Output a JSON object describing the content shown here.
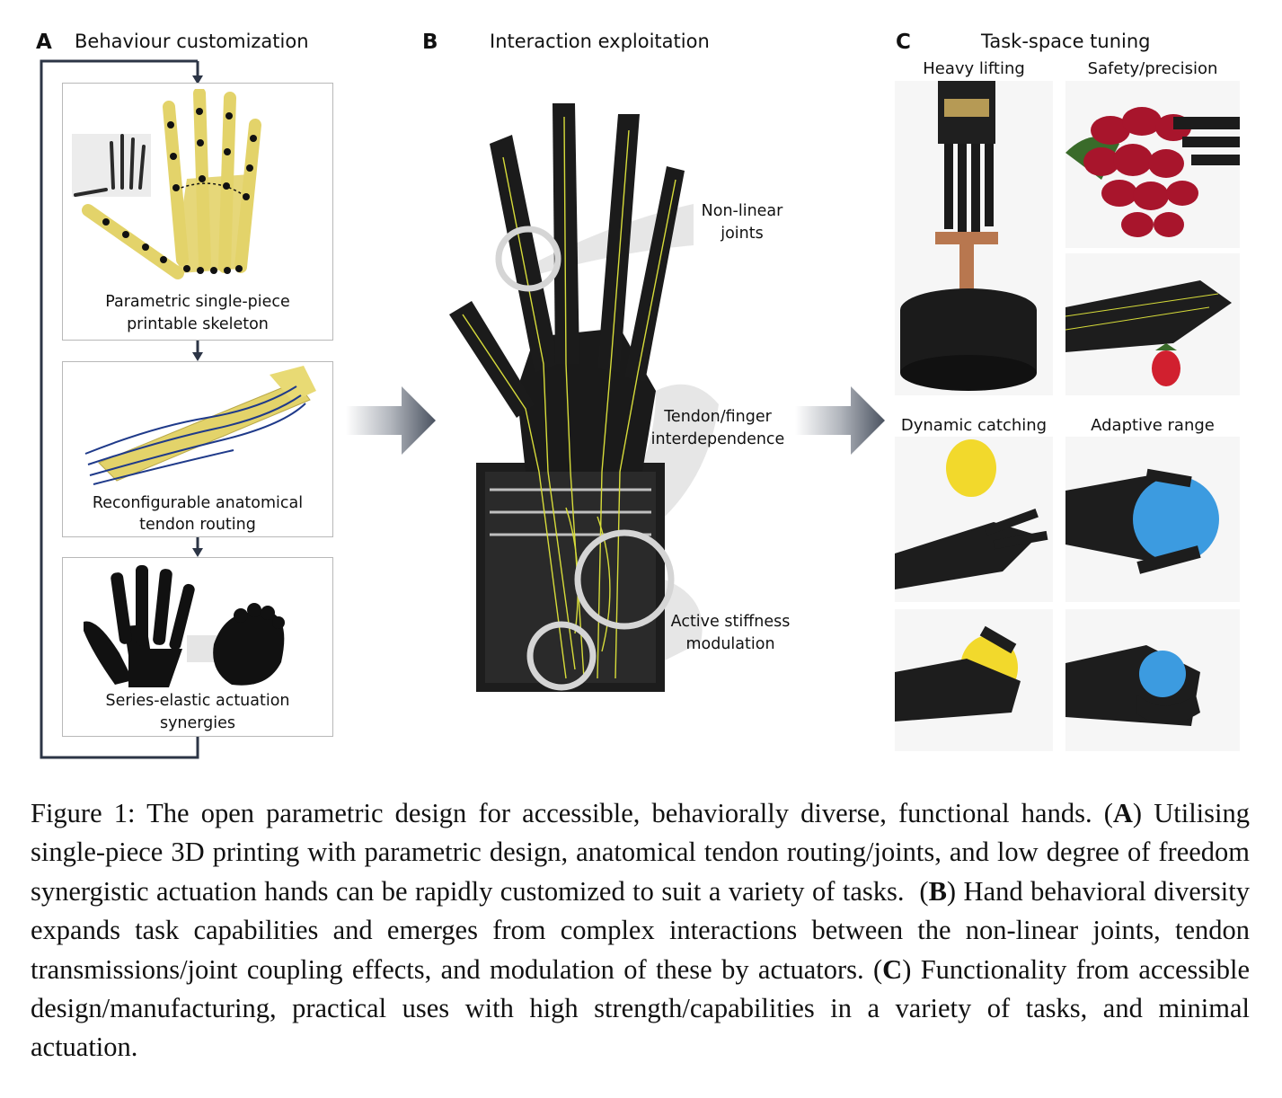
{
  "panels": {
    "a": {
      "letter": "A",
      "title": "Behaviour customization",
      "boxes": [
        {
          "caption_line1": "Parametric single-piece",
          "caption_line2": "printable skeleton"
        },
        {
          "caption_line1": "Reconfigurable anatomical",
          "caption_line2": "tendon routing"
        },
        {
          "caption_line1": "Series-elastic actuation",
          "caption_line2": "synergies"
        }
      ]
    },
    "b": {
      "letter": "B",
      "title": "Interaction exploitation",
      "labels": [
        {
          "line1": "Non-linear",
          "line2": "joints"
        },
        {
          "line1": "Tendon/finger",
          "line2": "interdependence"
        },
        {
          "line1": "Active stiffness",
          "line2": "modulation"
        }
      ]
    },
    "c": {
      "letter": "C",
      "title": "Task-space tuning",
      "tasks": [
        "Heavy lifting",
        "Safety/precision",
        "Dynamic catching",
        "Adaptive range"
      ]
    }
  },
  "colors": {
    "skeleton_yellow": "#e3d36a",
    "skeleton_dark": "#1a1a1a",
    "flow_line": "#2c3546",
    "arrow_gray": "#4a5260",
    "tendon_yellow": "#d7dc3a",
    "ball_blue": "#3c9be0",
    "lemon": "#f2d92c",
    "grape": "#a8152c"
  },
  "caption": {
    "figure_label": "Figure 1:",
    "intro": "The open parametric design for accessible, behaviorally diverse, functional hands.",
    "a_letter": "A",
    "a_text": "Utilising single-piece 3D printing with parametric design, anatomical tendon routing/joints, and low degree of freedom synergistic actuation hands can be rapidly customized to suit a variety of tasks.",
    "b_letter": "B",
    "b_text": "Hand behavioral diversity expands task capabilities and emerges from complex interactions between the non-linear joints, tendon transmissions/joint coupling effects, and modulation of these by actuators.",
    "c_letter": "C",
    "c_text": "Functionality from accessible design/manufacturing, practical uses with high strength/capabilities in a variety of tasks, and minimal actuation."
  }
}
